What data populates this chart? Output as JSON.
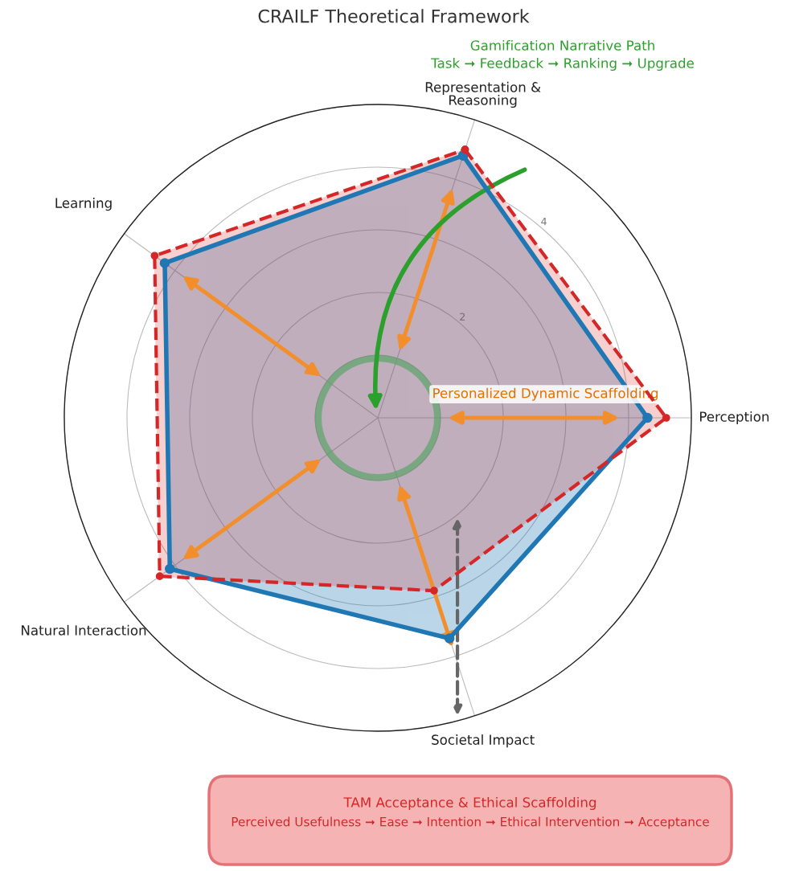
{
  "chart_data": {
    "type": "radar",
    "title": "CRAILF Theoretical Framework",
    "categories": [
      "Representation & Reasoning",
      "Perception",
      "Societal Impact",
      "Natural Interaction",
      "Learning"
    ],
    "series": [
      {
        "color": "#1f77b4",
        "values": [
          4.4,
          4.3,
          3.7,
          4.1,
          4.2
        ],
        "line_style": "solid"
      },
      {
        "color": "#d62728",
        "values": [
          4.5,
          4.6,
          2.9,
          4.3,
          4.4
        ],
        "line_style": "dashed"
      }
    ],
    "ylim": [
      0,
      5
    ],
    "yticks": [
      2,
      4
    ],
    "grid": true,
    "marker": "circle",
    "annotations": [
      "Gamification Narrative Path",
      "Task ➞ Feedback ➞ Ranking ➞ Upgrade",
      "Personalized Dynamic Scaffolding",
      "TAM Acceptance & Ethical Scaffolding",
      "Perceived Usefulness ➞ Ease ➞ Intention ➞ Ethical Intervention ➞ Acceptance"
    ]
  }
}
